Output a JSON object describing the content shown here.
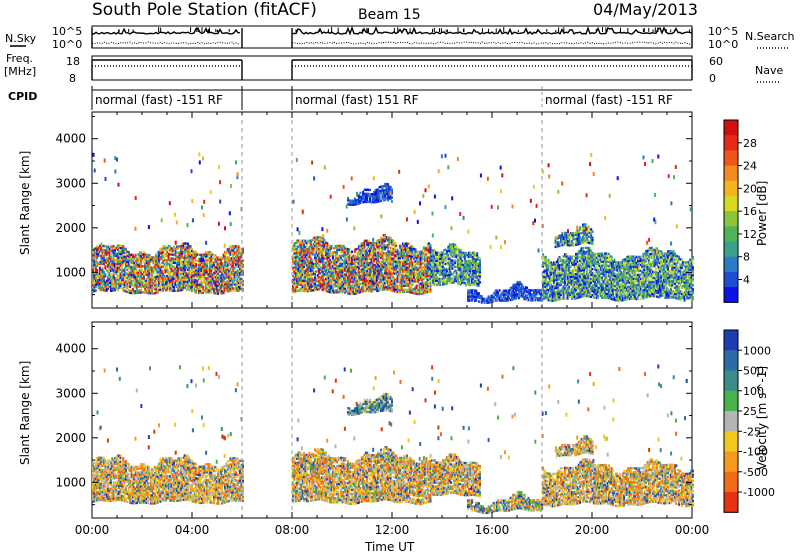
{
  "header": {
    "station_title": "South Pole Station (fitACF)",
    "beam_label": "Beam 15",
    "date_label": "04/May/2013"
  },
  "strip_labels": {
    "nsky": "N.Sky",
    "freq_line1": "Freq.",
    "freq_line2": "[MHz]",
    "cpid": "CPID",
    "nsearch": "N.Search",
    "nave": "Nave",
    "nsky_top_tick": "10^5",
    "nsky_bottom_tick": "10^0",
    "freq_top_tick": "18",
    "freq_bottom_tick": "8",
    "nave_top_tick": "60",
    "nave_bottom_tick": "0"
  },
  "cpid_segments": [
    {
      "text": "normal (fast) -151 RF",
      "start_hour": 0,
      "end_hour": 6
    },
    {
      "text": "normal (fast) 151 RF",
      "start_hour": 8,
      "end_hour": 18
    },
    {
      "text": "normal (fast) -151 RF",
      "start_hour": 18,
      "end_hour": 24
    }
  ],
  "chart_data": [
    {
      "type": "heatmap",
      "title": "",
      "panel": "power",
      "xlabel": "Time UT",
      "ylabel": "Slant Range [km]",
      "xlim": [
        0,
        24
      ],
      "ylim": [
        200,
        4600
      ],
      "x_ticks": [
        "00:00",
        "04:00",
        "08:00",
        "12:00",
        "16:00",
        "20:00",
        "00:00"
      ],
      "y_ticks": [
        1000,
        2000,
        3000,
        4000
      ],
      "data_gaps_hours": [
        [
          6,
          8
        ]
      ],
      "colorbar": {
        "label": "Power [dB]",
        "ticks": [
          "4",
          "8",
          "12",
          "16",
          "20",
          "24",
          "28"
        ],
        "colors": [
          "#0a14e6",
          "#1f4fd0",
          "#2d7bc4",
          "#3aa28a",
          "#4fb35a",
          "#8cc43a",
          "#d8d820",
          "#f5b41e",
          "#f58a1e",
          "#f0561a",
          "#e62a14",
          "#d21010"
        ]
      },
      "echo_regions": [
        {
          "start_hour": 0.0,
          "end_hour": 6.0,
          "range_low_km": 550,
          "range_high_km": 1500,
          "level": "high"
        },
        {
          "start_hour": 8.0,
          "end_hour": 13.5,
          "range_low_km": 550,
          "range_high_km": 1650,
          "level": "high"
        },
        {
          "start_hour": 13.5,
          "end_hour": 15.5,
          "range_low_km": 700,
          "range_high_km": 1450,
          "level": "medium"
        },
        {
          "start_hour": 15.0,
          "end_hour": 18.0,
          "range_low_km": 350,
          "range_high_km": 600,
          "level": "low"
        },
        {
          "start_hour": 18.0,
          "end_hour": 24.0,
          "range_low_km": 400,
          "range_high_km": 1400,
          "level": "medium"
        },
        {
          "start_hour": 10.2,
          "end_hour": 12.0,
          "range_low_km": 2550,
          "range_high_km": 2800,
          "level": "low"
        },
        {
          "start_hour": 18.5,
          "end_hour": 20.0,
          "range_low_km": 1600,
          "range_high_km": 1900,
          "level": "medium"
        }
      ]
    },
    {
      "type": "heatmap",
      "title": "",
      "panel": "velocity",
      "xlabel": "Time UT",
      "ylabel": "Slant Range [km]",
      "xlim": [
        0,
        24
      ],
      "ylim": [
        200,
        4600
      ],
      "x_ticks": [
        "00:00",
        "04:00",
        "08:00",
        "12:00",
        "16:00",
        "20:00",
        "00:00"
      ],
      "y_ticks": [
        1000,
        2000,
        3000,
        4000
      ],
      "data_gaps_hours": [
        [
          6,
          8
        ]
      ],
      "colorbar": {
        "label": "Velocity [m s^-1]",
        "ticks": [
          "1000",
          "500",
          "100",
          "25",
          "-25",
          "-100",
          "-500",
          "-1000"
        ],
        "colors": [
          "#1e3cb4",
          "#2d6aa8",
          "#3c8c8c",
          "#4ab24a",
          "#b4b4b4",
          "#f0c81e",
          "#f59a1e",
          "#f06a1a",
          "#e63214"
        ]
      },
      "echo_regions": [
        {
          "start_hour": 0.0,
          "end_hour": 6.0,
          "range_low_km": 550,
          "range_high_km": 1450,
          "level": "negative"
        },
        {
          "start_hour": 8.0,
          "end_hour": 13.5,
          "range_low_km": 550,
          "range_high_km": 1600,
          "level": "negative"
        },
        {
          "start_hour": 13.5,
          "end_hour": 15.5,
          "range_low_km": 700,
          "range_high_km": 1450,
          "level": "negative"
        },
        {
          "start_hour": 15.0,
          "end_hour": 18.0,
          "range_low_km": 350,
          "range_high_km": 600,
          "level": "mixed"
        },
        {
          "start_hour": 18.0,
          "end_hour": 24.0,
          "range_low_km": 500,
          "range_high_km": 1350,
          "level": "negative"
        },
        {
          "start_hour": 10.2,
          "end_hour": 12.0,
          "range_low_km": 2550,
          "range_high_km": 2800,
          "level": "low"
        },
        {
          "start_hour": 18.5,
          "end_hour": 20.0,
          "range_low_km": 1600,
          "range_high_km": 1850,
          "level": "negative"
        }
      ]
    }
  ],
  "theme": {
    "axis_color": "#000000",
    "dash_color": "#999999"
  }
}
